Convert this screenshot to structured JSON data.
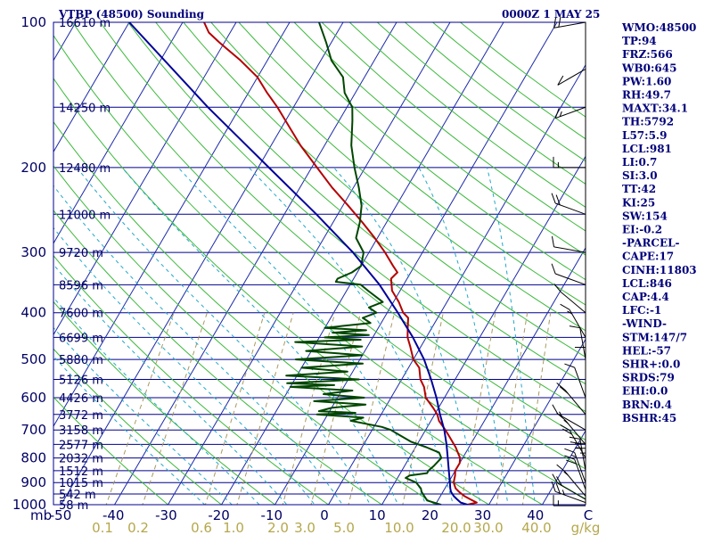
{
  "header": {
    "station": "VTBP (48500) Sounding",
    "time": "0000Z  1 MAY 25"
  },
  "axes": {
    "mb_label": "mb",
    "mix_unit": "g/kg"
  },
  "chart_data": {
    "type": "line",
    "title": "VTBP (48500) Sounding",
    "subtitle": "0000Z  1 MAY 25",
    "x_label": "",
    "y_label": "mb",
    "y_scale": "log",
    "ylim": [
      1000,
      100
    ],
    "xlim": [
      -50,
      50
    ],
    "pressure_labels": [
      "100",
      "200",
      "300",
      "400",
      "500",
      "600",
      "700",
      "800",
      "900",
      "1000"
    ],
    "temperature_labels": [
      "-50",
      "-40",
      "-30",
      "-20",
      "-10",
      "0",
      "10",
      "20",
      "30",
      "40",
      "C"
    ],
    "mixing_ratio_labels": [
      "0.1",
      "0.2",
      "0.6",
      "1.0",
      "2.0",
      "3.0",
      "5.0",
      "10.0",
      "20.0",
      "30.0",
      "40.0",
      "g/kg"
    ],
    "height_labels": [
      {
        "p": 100,
        "text": "16610 m"
      },
      {
        "p": 150,
        "text": "14250 m"
      },
      {
        "p": 200,
        "text": "12480 m"
      },
      {
        "p": 250,
        "text": "11000 m"
      },
      {
        "p": 300,
        "text": "9720 m"
      },
      {
        "p": 350,
        "text": "8596 m"
      },
      {
        "p": 400,
        "text": "7600 m"
      },
      {
        "p": 450,
        "text": "6699 m"
      },
      {
        "p": 500,
        "text": "5880 m"
      },
      {
        "p": 550,
        "text": "5126 m"
      },
      {
        "p": 600,
        "text": "4426 m"
      },
      {
        "p": 650,
        "text": "3772 m"
      },
      {
        "p": 700,
        "text": "3158 m"
      },
      {
        "p": 750,
        "text": "2577 m"
      },
      {
        "p": 800,
        "text": "2032 m"
      },
      {
        "p": 850,
        "text": "1512 m"
      },
      {
        "p": 900,
        "text": "1015 m"
      },
      {
        "p": 950,
        "text": "542 m"
      },
      {
        "p": 1000,
        "text": "58 m"
      }
    ],
    "grid": true,
    "series": [
      {
        "key": "temperature",
        "color": "#b40000",
        "points": [
          [
            1005,
            24
          ],
          [
            1000,
            26
          ],
          [
            990,
            27.5
          ],
          [
            975,
            26
          ],
          [
            960,
            24.5
          ],
          [
            940,
            23
          ],
          [
            925,
            22
          ],
          [
            900,
            21
          ],
          [
            870,
            20.5
          ],
          [
            850,
            20
          ],
          [
            820,
            20
          ],
          [
            800,
            19.5
          ],
          [
            760,
            17.5
          ],
          [
            720,
            15
          ],
          [
            700,
            13.7
          ],
          [
            670,
            11.5
          ],
          [
            650,
            10.5
          ],
          [
            630,
            9
          ],
          [
            600,
            6.5
          ],
          [
            570,
            5
          ],
          [
            550,
            3.5
          ],
          [
            520,
            2
          ],
          [
            500,
            0
          ],
          [
            470,
            -2
          ],
          [
            450,
            -3.5
          ],
          [
            430,
            -4.5
          ],
          [
            410,
            -5.5
          ],
          [
            400,
            -7
          ],
          [
            380,
            -9
          ],
          [
            360,
            -11.5
          ],
          [
            340,
            -13
          ],
          [
            330,
            -12.5
          ],
          [
            320,
            -14
          ],
          [
            300,
            -17
          ],
          [
            280,
            -20.5
          ],
          [
            260,
            -24.5
          ],
          [
            240,
            -29
          ],
          [
            220,
            -34
          ],
          [
            200,
            -39
          ],
          [
            180,
            -44.5
          ],
          [
            160,
            -50
          ],
          [
            150,
            -53
          ],
          [
            140,
            -56.5
          ],
          [
            130,
            -60
          ],
          [
            120,
            -65
          ],
          [
            110,
            -71
          ],
          [
            105,
            -74
          ],
          [
            100,
            -76
          ]
        ]
      },
      {
        "key": "dewpoint",
        "color": "#004600",
        "points": [
          [
            1005,
            20
          ],
          [
            1000,
            21
          ],
          [
            980,
            18
          ],
          [
            960,
            17
          ],
          [
            940,
            16
          ],
          [
            925,
            15.5
          ],
          [
            900,
            14
          ],
          [
            880,
            11.5
          ],
          [
            870,
            12
          ],
          [
            860,
            15
          ],
          [
            850,
            15
          ],
          [
            830,
            15.5
          ],
          [
            800,
            16
          ],
          [
            780,
            15
          ],
          [
            760,
            12
          ],
          [
            740,
            8.5
          ],
          [
            720,
            6
          ],
          [
            700,
            3.5
          ],
          [
            690,
            1.5
          ],
          [
            670,
            -5
          ],
          [
            660,
            -3
          ],
          [
            650,
            -12
          ],
          [
            645,
            -5
          ],
          [
            640,
            -12
          ],
          [
            630,
            -10
          ],
          [
            620,
            -4
          ],
          [
            610,
            -14
          ],
          [
            600,
            -5
          ],
          [
            590,
            -13
          ],
          [
            580,
            -8
          ],
          [
            570,
            -20
          ],
          [
            565,
            -12
          ],
          [
            560,
            -21
          ],
          [
            550,
            -8
          ],
          [
            540,
            -22
          ],
          [
            530,
            -11
          ],
          [
            520,
            -20
          ],
          [
            510,
            -9
          ],
          [
            500,
            -22
          ],
          [
            490,
            -10
          ],
          [
            480,
            -21
          ],
          [
            470,
            -11
          ],
          [
            460,
            -24
          ],
          [
            455,
            -12
          ],
          [
            450,
            -19
          ],
          [
            445,
            -11
          ],
          [
            440,
            -18
          ],
          [
            435,
            -12
          ],
          [
            430,
            -20
          ],
          [
            420,
            -12
          ],
          [
            410,
            -14
          ],
          [
            400,
            -12
          ],
          [
            390,
            -14
          ],
          [
            380,
            -12
          ],
          [
            360,
            -16
          ],
          [
            350,
            -18
          ],
          [
            345,
            -23
          ],
          [
            340,
            -23
          ],
          [
            330,
            -21
          ],
          [
            320,
            -20
          ],
          [
            300,
            -21
          ],
          [
            280,
            -24
          ],
          [
            260,
            -25
          ],
          [
            240,
            -26.5
          ],
          [
            220,
            -29
          ],
          [
            200,
            -32
          ],
          [
            180,
            -35
          ],
          [
            160,
            -37.5
          ],
          [
            150,
            -39
          ],
          [
            140,
            -42
          ],
          [
            130,
            -44
          ],
          [
            120,
            -48
          ],
          [
            110,
            -51
          ],
          [
            100,
            -54.5
          ]
        ]
      },
      {
        "key": "parcel",
        "color": "#00009a",
        "points": [
          [
            1005,
            26
          ],
          [
            1000,
            26
          ],
          [
            990,
            24.5
          ],
          [
            975,
            23.5
          ],
          [
            960,
            22.5
          ],
          [
            940,
            21.5
          ],
          [
            925,
            21
          ],
          [
            900,
            20.3
          ],
          [
            850,
            18.8
          ],
          [
            800,
            17.2
          ],
          [
            750,
            15.5
          ],
          [
            700,
            13.5
          ],
          [
            650,
            11
          ],
          [
            600,
            8.5
          ],
          [
            550,
            5.5
          ],
          [
            500,
            2
          ],
          [
            450,
            -2.5
          ],
          [
            400,
            -8
          ],
          [
            350,
            -14.5
          ],
          [
            300,
            -23
          ],
          [
            250,
            -34
          ],
          [
            200,
            -48
          ],
          [
            150,
            -66
          ],
          [
            100,
            -90
          ]
        ]
      }
    ],
    "wind_barbs": [
      {
        "p": 1005,
        "dir": 270,
        "spd": 15
      },
      {
        "p": 990,
        "dir": 250,
        "spd": 25
      },
      {
        "p": 975,
        "dir": 240,
        "spd": 20
      },
      {
        "p": 960,
        "dir": 220,
        "spd": 15
      },
      {
        "p": 930,
        "dir": 200,
        "spd": 20
      },
      {
        "p": 900,
        "dir": 200,
        "spd": 15
      },
      {
        "p": 870,
        "dir": 180,
        "spd": 25
      },
      {
        "p": 850,
        "dir": 190,
        "spd": 25
      },
      {
        "p": 800,
        "dir": 210,
        "spd": 20
      },
      {
        "p": 750,
        "dir": 220,
        "spd": 15
      },
      {
        "p": 700,
        "dir": 240,
        "spd": 15
      },
      {
        "p": 650,
        "dir": 220,
        "spd": 20
      },
      {
        "p": 600,
        "dir": 200,
        "spd": 10
      },
      {
        "p": 550,
        "dir": 180,
        "spd": 10
      },
      {
        "p": 500,
        "dir": 190,
        "spd": 10
      },
      {
        "p": 450,
        "dir": 210,
        "spd": 15
      },
      {
        "p": 400,
        "dir": 230,
        "spd": 10
      },
      {
        "p": 350,
        "dir": 250,
        "spd": 10
      },
      {
        "p": 300,
        "dir": 260,
        "spd": 10
      },
      {
        "p": 250,
        "dir": 250,
        "spd": 20
      },
      {
        "p": 200,
        "dir": 270,
        "spd": 15
      },
      {
        "p": 150,
        "dir": 290,
        "spd": 15
      },
      {
        "p": 125,
        "dir": 300,
        "spd": 10
      },
      {
        "p": 100,
        "dir": 280,
        "spd": 20
      }
    ]
  },
  "indices": [
    "WMO:48500",
    "TP:94",
    "FRZ:566",
    "WB0:645",
    "PW:1.60",
    "RH:49.7",
    "MAXT:34.1",
    "TH:5792",
    "L57:5.9",
    "LCL:981",
    "LI:0.7",
    "SI:3.0",
    "TT:42",
    "KI:25",
    "SW:154",
    "EI:-0.2",
    "-PARCEL-",
    "CAPE:17",
    "CINH:11803",
    "LCL:846",
    "CAP:4.4",
    "LFC:-1",
    "-WIND-",
    "STM:147/7",
    "HEL:-57",
    "SHR+:0.0",
    "SRDS:79",
    "EHI:0.0",
    "BRN:0.4",
    "BSHR:45"
  ],
  "colors": {
    "isobar": "#00008c",
    "isotherm": "#1c2aa8",
    "dry_adiabat": "#3cb93c",
    "moist_adiabat": "#22a8c8",
    "mixing_ratio": "#a89a60",
    "temperature": "#b40000",
    "dewpoint": "#004600",
    "parcel": "#00009a",
    "barb": "#000000"
  }
}
